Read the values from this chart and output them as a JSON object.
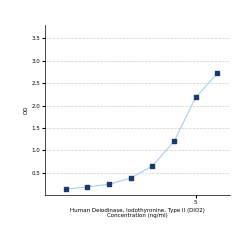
{
  "x": [
    0.078,
    0.156,
    0.313,
    0.625,
    1.25,
    2.5,
    5,
    10
  ],
  "y": [
    0.13,
    0.18,
    0.24,
    0.38,
    0.65,
    1.2,
    2.18,
    2.72
  ],
  "line_color": "#aacce8",
  "marker_color": "#1a3a6b",
  "marker": "s",
  "marker_size": 3.5,
  "xlabel_line1": "Human Deiodinase, Iodothyronine, Type II (DIO2)",
  "xlabel_line2": "Concentration (ng/ml)",
  "ylabel": "OD",
  "xlim_log": [
    0.04,
    15
  ],
  "ylim": [
    0,
    3.8
  ],
  "yticks": [
    0.5,
    1.0,
    1.5,
    2.0,
    2.5,
    3.0,
    3.5
  ],
  "xticks": [
    5
  ],
  "xticklabels": [
    "5"
  ],
  "grid_color": "#cccccc",
  "bg_color": "#ffffff",
  "label_fontsize": 4.0,
  "tick_fontsize": 4.0
}
